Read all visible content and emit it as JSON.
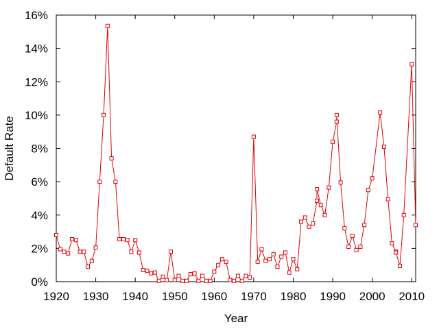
{
  "chart_data": {
    "type": "line",
    "title": "",
    "xlabel": "Year",
    "ylabel": "Default Rate",
    "xlim": [
      1920,
      2011
    ],
    "ylim": [
      0,
      16
    ],
    "x_ticks": [
      1920,
      1930,
      1940,
      1950,
      1960,
      1970,
      1980,
      1990,
      2000,
      2010
    ],
    "x_tick_labels": [
      "1920",
      "1930",
      "1940",
      "1950",
      "1960",
      "1970",
      "1980",
      "1990",
      "2000",
      "2010"
    ],
    "y_ticks": [
      0,
      2,
      4,
      6,
      8,
      10,
      12,
      14,
      16
    ],
    "y_tick_labels": [
      "0%",
      "2%",
      "4%",
      "6%",
      "8%",
      "10%",
      "12%",
      "14%",
      "16%"
    ],
    "grid": false,
    "legend": "none",
    "series": [
      {
        "color": "#e00000",
        "marker": "square",
        "x": [
          1920,
          1921,
          1922,
          1923,
          1924,
          1925,
          1926,
          1927,
          1928,
          1929,
          1930,
          1931,
          1932,
          1933,
          1934,
          1935,
          1936,
          1937,
          1938,
          1939,
          1940,
          1941,
          1942,
          1943,
          1944,
          1945,
          1946,
          1947,
          1948,
          1949,
          1950,
          1951,
          1952,
          1953,
          1954,
          1955,
          1956,
          1957,
          1958,
          1959,
          1960,
          1961,
          1962,
          1963,
          1964,
          1965,
          1966,
          1967,
          1968,
          1969,
          1970,
          1971,
          1972,
          1973,
          1974,
          1975,
          1976,
          1977,
          1978,
          1979,
          1980,
          1981,
          1982,
          1983,
          1984,
          1985,
          1986,
          1986,
          1987,
          1988,
          1989,
          1990,
          1991,
          1991,
          1992,
          1993,
          1994,
          1995,
          1996,
          1997,
          1998,
          1999,
          2000,
          2002,
          2003,
          2004,
          2005,
          2006,
          2006,
          2007,
          2008,
          2010,
          2011
        ],
        "y": [
          2.8,
          1.95,
          1.8,
          1.7,
          2.55,
          2.5,
          1.8,
          1.8,
          0.9,
          1.25,
          2.05,
          6.0,
          10.0,
          15.35,
          7.4,
          6.0,
          2.55,
          2.55,
          2.5,
          1.8,
          2.5,
          1.75,
          0.7,
          0.65,
          0.5,
          0.55,
          0.05,
          0.3,
          0.1,
          1.8,
          0.1,
          0.35,
          0.05,
          0.05,
          0.45,
          0.5,
          0.05,
          0.35,
          0.05,
          0.05,
          0.6,
          1.0,
          1.35,
          1.2,
          0.1,
          0.05,
          0.35,
          0.05,
          0.35,
          0.25,
          8.7,
          1.2,
          1.95,
          1.25,
          1.35,
          1.65,
          0.9,
          1.5,
          1.75,
          0.55,
          1.35,
          0.75,
          3.6,
          3.85,
          3.3,
          3.5,
          4.85,
          5.55,
          4.6,
          4.0,
          5.65,
          8.4,
          9.6,
          10.0,
          5.95,
          3.2,
          2.1,
          2.75,
          1.9,
          2.1,
          3.4,
          5.5,
          6.2,
          10.15,
          8.1,
          4.95,
          2.3,
          1.8,
          1.75,
          0.95,
          4.0,
          13.05,
          3.4
        ]
      }
    ]
  }
}
